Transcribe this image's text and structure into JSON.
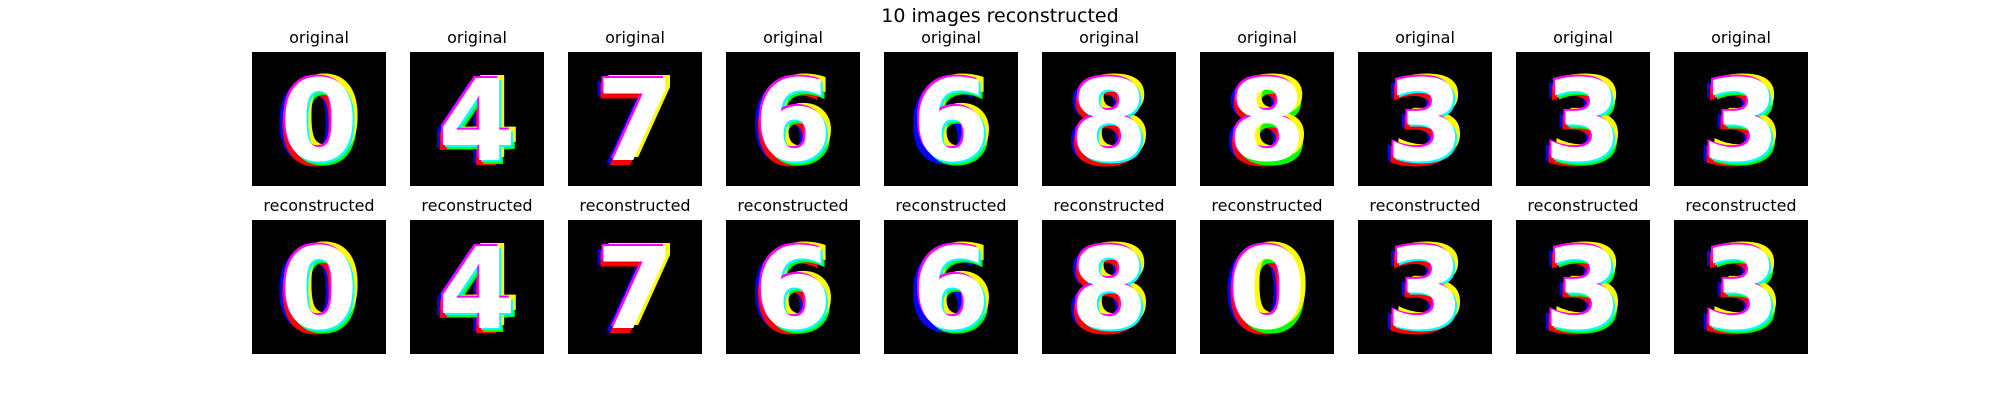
{
  "figure": {
    "title": "10 images reconstructed",
    "background_color": "#ffffff",
    "image_background_color": "#000000"
  },
  "rows": [
    {
      "label": "original",
      "images": [
        {
          "digit_shown": "0",
          "dominant_colors": [
            "#ff0000",
            "#00ff00",
            "#0000ff",
            "#ffff00",
            "#ff00ff",
            "#00ffff",
            "#ffffff"
          ]
        },
        {
          "digit_shown": "4",
          "dominant_colors": [
            "#ff0000",
            "#00ff00",
            "#0000ff",
            "#ffff00",
            "#ff00ff",
            "#00ffff",
            "#ffffff"
          ]
        },
        {
          "digit_shown": "7",
          "dominant_colors": [
            "#ff0000",
            "#0000ff",
            "#ffff00",
            "#ff00ff",
            "#ffffff"
          ]
        },
        {
          "digit_shown": "6",
          "dominant_colors": [
            "#ff0000",
            "#00ff00",
            "#0000ff",
            "#ffff00",
            "#ff00ff",
            "#00ffff",
            "#ffffff"
          ]
        },
        {
          "digit_shown": "6",
          "dominant_colors": [
            "#00ff00",
            "#0000ff",
            "#ffff00",
            "#ff00ff",
            "#00ffff",
            "#ffffff"
          ]
        },
        {
          "digit_shown": "8",
          "dominant_colors": [
            "#ff0000",
            "#0000ff",
            "#ffff00",
            "#ff00ff",
            "#00ffff",
            "#ffffff"
          ]
        },
        {
          "digit_shown": "8",
          "dominant_colors": [
            "#ff0000",
            "#00ff00",
            "#0000ff",
            "#ffff00",
            "#ff00ff",
            "#ffffff"
          ]
        },
        {
          "digit_shown": "3",
          "dominant_colors": [
            "#ff0000",
            "#0000ff",
            "#ffff00",
            "#ff00ff",
            "#00ffff",
            "#ffffff"
          ]
        },
        {
          "digit_shown": "3",
          "dominant_colors": [
            "#ff0000",
            "#00ff00",
            "#0000ff",
            "#ffff00",
            "#ff00ff",
            "#00ffff",
            "#ffffff"
          ]
        },
        {
          "digit_shown": "3",
          "dominant_colors": [
            "#ff0000",
            "#00ff00",
            "#0000ff",
            "#ffff00",
            "#ff00ff",
            "#00ffff",
            "#ffffff"
          ]
        }
      ]
    },
    {
      "label": "reconstructed",
      "images": [
        {
          "digit_shown": "0",
          "dominant_colors": [
            "#ff0000",
            "#00ff00",
            "#0000ff",
            "#ffff00",
            "#ff00ff",
            "#00ffff",
            "#ffffff"
          ]
        },
        {
          "digit_shown": "4",
          "dominant_colors": [
            "#ff0000",
            "#00ff00",
            "#0000ff",
            "#ffff00",
            "#ff00ff",
            "#00ffff",
            "#ffffff"
          ]
        },
        {
          "digit_shown": "7",
          "dominant_colors": [
            "#ff0000",
            "#0000ff",
            "#ffff00",
            "#ff00ff",
            "#ffffff"
          ]
        },
        {
          "digit_shown": "6",
          "dominant_colors": [
            "#ff0000",
            "#00ff00",
            "#0000ff",
            "#ffff00",
            "#ff00ff",
            "#00ffff",
            "#ffffff"
          ]
        },
        {
          "digit_shown": "6",
          "dominant_colors": [
            "#00ff00",
            "#0000ff",
            "#ffff00",
            "#ff00ff",
            "#00ffff",
            "#ffffff"
          ]
        },
        {
          "digit_shown": "8",
          "dominant_colors": [
            "#ff0000",
            "#0000ff",
            "#ffff00",
            "#ff00ff",
            "#00ffff",
            "#ffffff"
          ]
        },
        {
          "digit_shown": "0",
          "dominant_colors": [
            "#ff0000",
            "#00ff00",
            "#0000ff",
            "#ffff00",
            "#ff00ff",
            "#ffffff"
          ]
        },
        {
          "digit_shown": "3",
          "dominant_colors": [
            "#ff0000",
            "#0000ff",
            "#ffff00",
            "#ff00ff",
            "#00ffff",
            "#ffffff"
          ]
        },
        {
          "digit_shown": "3",
          "dominant_colors": [
            "#ff0000",
            "#00ff00",
            "#0000ff",
            "#ffff00",
            "#ff00ff",
            "#00ffff",
            "#ffffff"
          ]
        },
        {
          "digit_shown": "3",
          "dominant_colors": [
            "#ff0000",
            "#00ff00",
            "#0000ff",
            "#ffff00",
            "#ff00ff",
            "#00ffff",
            "#ffffff"
          ]
        }
      ]
    }
  ]
}
